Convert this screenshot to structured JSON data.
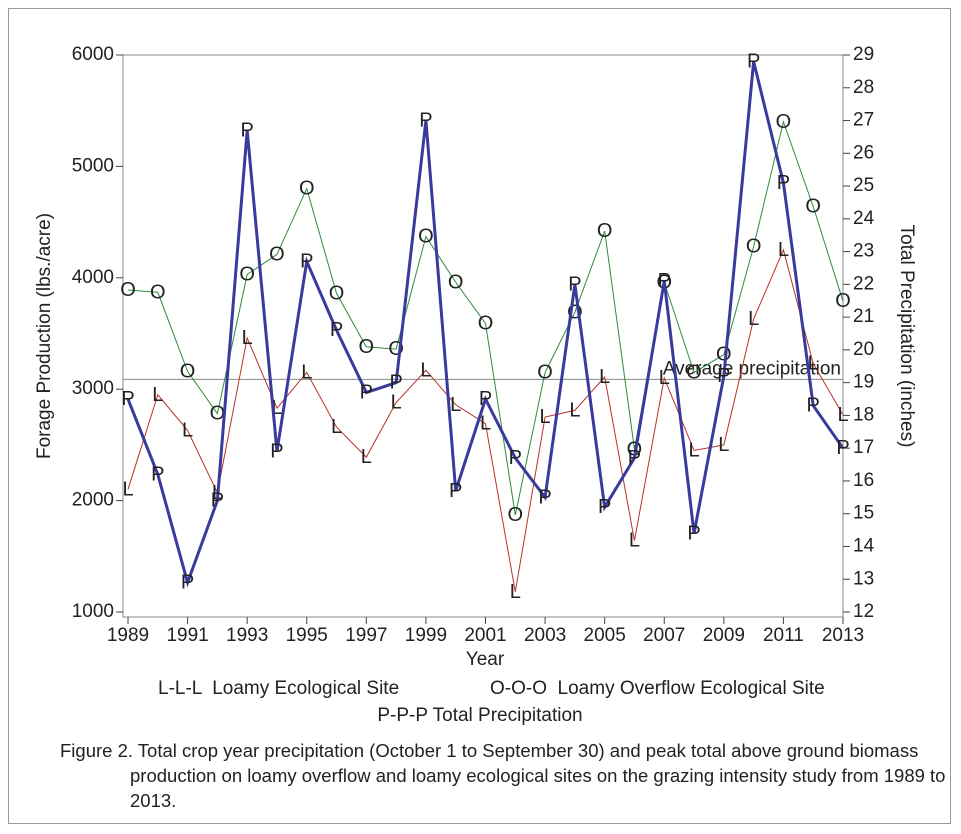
{
  "chart_data": {
    "type": "line",
    "x": [
      1989,
      1990,
      1991,
      1992,
      1993,
      1994,
      1995,
      1996,
      1997,
      1998,
      1999,
      2000,
      2001,
      2002,
      2003,
      2004,
      2005,
      2006,
      2007,
      2008,
      2009,
      2010,
      2011,
      2012,
      2013
    ],
    "xlim": [
      1989,
      2013
    ],
    "xticks": [
      1989,
      1991,
      1993,
      1995,
      1997,
      1999,
      2001,
      2003,
      2005,
      2007,
      2009,
      2011,
      2013
    ],
    "xlabel": "Year",
    "ylabel": "Forage Production (lbs./acre)",
    "ylim": [
      1000,
      6000
    ],
    "yticks": [
      1000,
      2000,
      3000,
      4000,
      5000,
      6000
    ],
    "y2label": "Total Precipitation (inches)",
    "y2lim": [
      12,
      29
    ],
    "y2ticks": [
      12,
      13,
      14,
      15,
      16,
      17,
      18,
      19,
      20,
      21,
      22,
      23,
      24,
      25,
      26,
      27,
      28,
      29
    ],
    "series": [
      {
        "name": "L-L-L  Loamy Ecological Site",
        "marker": "L",
        "color": "#b8322a",
        "width": 1,
        "values": [
          2100,
          2950,
          2630,
          2070,
          3460,
          2830,
          3150,
          2660,
          2390,
          2880,
          3170,
          2860,
          2690,
          1180,
          2750,
          2810,
          3110,
          1640,
          3100,
          2450,
          2500,
          3630,
          4250,
          3230,
          2770
        ]
      },
      {
        "name": "O-O-O  Loamy Overflow Ecological Site",
        "marker": "O",
        "color": "#2e8b3e",
        "width": 1,
        "values": [
          3890,
          3870,
          3160,
          2780,
          4030,
          4210,
          4800,
          3860,
          3380,
          3360,
          4370,
          3960,
          3590,
          1870,
          3150,
          3690,
          4420,
          2460,
          3960,
          3150,
          3310,
          4280,
          5400,
          4640,
          3790
        ]
      },
      {
        "name": "P-P-P Total Precipitation",
        "marker": "P",
        "color": "#3a3a9e",
        "width": 3,
        "axis": "y2",
        "values": [
          18.5,
          16.2,
          12.9,
          15.4,
          26.7,
          16.9,
          22.7,
          20.6,
          18.7,
          19.0,
          27.0,
          15.7,
          18.5,
          16.7,
          15.5,
          22.0,
          15.2,
          16.7,
          22.1,
          14.4,
          19.2,
          28.8,
          25.1,
          18.3,
          17.0
        ]
      }
    ],
    "reference_line": {
      "label": "Average precipitation",
      "value": 19.1,
      "axis": "y2"
    },
    "caption": "Figure 2. Total crop year precipitation (October 1 to September 30) and peak total above ground biomass production on loamy overflow and loamy ecological sites on the grazing intensity study from 1989 to 2013."
  }
}
